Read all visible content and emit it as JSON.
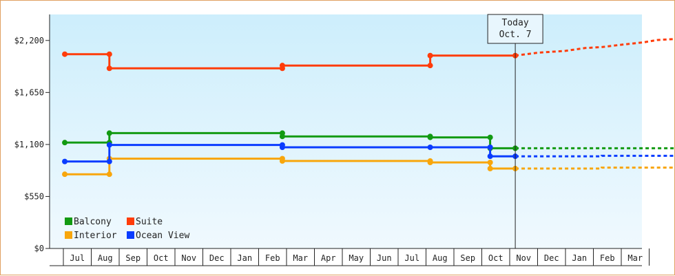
{
  "chart_data": {
    "type": "line",
    "title": "",
    "xlabel": "",
    "ylabel": "",
    "ylim": [
      0,
      2475
    ],
    "grid": false,
    "legend_position": "bottom-left",
    "x_tick_labels": [
      "Jul",
      "Aug",
      "Sep",
      "Oct",
      "Nov",
      "Dec",
      "Jan",
      "Feb",
      "Mar",
      "Apr",
      "May",
      "Jun",
      "Jul",
      "Aug",
      "Sep",
      "Oct",
      "Nov",
      "Dec",
      "Jan",
      "Feb",
      "Mar"
    ],
    "y_ticks": [
      0,
      550,
      1100,
      1650,
      2200
    ],
    "y_tick_labels": [
      "$0",
      "$550",
      "$1,100",
      "$1,650",
      "$2,200"
    ],
    "today_marker": {
      "line1": "Today",
      "line2": "Oct. 7",
      "x": 15.7
    },
    "series": [
      {
        "name": "Balcony",
        "color": "#129a12",
        "points": [
          [
            -0.45,
            1120
          ],
          [
            1.15,
            1120
          ],
          [
            1.15,
            1220
          ],
          [
            7.35,
            1220
          ],
          [
            7.35,
            1185
          ],
          [
            12.65,
            1185
          ],
          [
            12.65,
            1175
          ],
          [
            14.8,
            1175
          ],
          [
            14.8,
            1060
          ],
          [
            15.7,
            1060
          ]
        ],
        "markers": [
          [
            -0.45,
            1120
          ],
          [
            1.15,
            1120
          ],
          [
            1.15,
            1220
          ],
          [
            7.35,
            1220
          ],
          [
            7.35,
            1185
          ],
          [
            12.65,
            1185
          ],
          [
            12.65,
            1175
          ],
          [
            14.8,
            1175
          ],
          [
            14.8,
            1060
          ],
          [
            15.7,
            1060
          ]
        ],
        "projection": [
          [
            15.7,
            1060
          ],
          [
            21.4,
            1060
          ]
        ]
      },
      {
        "name": "Suite",
        "color": "#ff3c0a",
        "points": [
          [
            -0.45,
            2055
          ],
          [
            1.15,
            2055
          ],
          [
            1.15,
            1905
          ],
          [
            7.35,
            1905
          ],
          [
            7.35,
            1935
          ],
          [
            12.65,
            1935
          ],
          [
            12.65,
            2040
          ],
          [
            15.7,
            2040
          ]
        ],
        "markers": [
          [
            -0.45,
            2055
          ],
          [
            1.15,
            2055
          ],
          [
            1.15,
            1905
          ],
          [
            7.35,
            1905
          ],
          [
            7.35,
            1935
          ],
          [
            12.65,
            1935
          ],
          [
            12.65,
            2040
          ],
          [
            15.7,
            2040
          ]
        ],
        "projection": [
          [
            15.7,
            2040
          ],
          [
            16.5,
            2070
          ],
          [
            17.5,
            2090
          ],
          [
            18.2,
            2120
          ],
          [
            18.8,
            2130
          ],
          [
            19.5,
            2155
          ],
          [
            20.3,
            2180
          ],
          [
            20.8,
            2205
          ],
          [
            21.4,
            2215
          ]
        ]
      },
      {
        "name": "Interior",
        "color": "#f8a60c",
        "points": [
          [
            -0.45,
            785
          ],
          [
            1.15,
            785
          ],
          [
            1.15,
            950
          ],
          [
            7.35,
            950
          ],
          [
            7.35,
            925
          ],
          [
            12.65,
            925
          ],
          [
            12.65,
            910
          ],
          [
            14.8,
            910
          ],
          [
            14.8,
            845
          ],
          [
            15.7,
            845
          ]
        ],
        "markers": [
          [
            -0.45,
            785
          ],
          [
            1.15,
            785
          ],
          [
            1.15,
            950
          ],
          [
            7.35,
            950
          ],
          [
            7.35,
            925
          ],
          [
            12.65,
            925
          ],
          [
            12.65,
            910
          ],
          [
            14.8,
            910
          ],
          [
            14.8,
            845
          ],
          [
            15.7,
            845
          ]
        ],
        "projection": [
          [
            15.7,
            845
          ],
          [
            18.8,
            845
          ],
          [
            18.8,
            855
          ],
          [
            21.4,
            855
          ]
        ]
      },
      {
        "name": "Ocean View",
        "color": "#0a3cff",
        "points": [
          [
            -0.45,
            920
          ],
          [
            1.15,
            920
          ],
          [
            1.15,
            1095
          ],
          [
            7.35,
            1095
          ],
          [
            7.35,
            1070
          ],
          [
            12.65,
            1070
          ],
          [
            12.65,
            1070
          ],
          [
            14.8,
            1070
          ],
          [
            14.8,
            975
          ],
          [
            15.7,
            975
          ]
        ],
        "markers": [
          [
            -0.45,
            920
          ],
          [
            1.15,
            920
          ],
          [
            1.15,
            1095
          ],
          [
            7.35,
            1095
          ],
          [
            7.35,
            1070
          ],
          [
            12.65,
            1070
          ],
          [
            14.8,
            1070
          ],
          [
            14.8,
            975
          ],
          [
            15.7,
            975
          ]
        ],
        "projection": [
          [
            15.7,
            975
          ],
          [
            18.8,
            975
          ],
          [
            18.8,
            980
          ],
          [
            21.4,
            980
          ]
        ]
      }
    ],
    "legend": [
      {
        "name": "Balcony",
        "color": "#129a12"
      },
      {
        "name": "Suite",
        "color": "#ff3c0a"
      },
      {
        "name": "Interior",
        "color": "#f8a60c"
      },
      {
        "name": "Ocean View",
        "color": "#0a3cff"
      }
    ]
  }
}
